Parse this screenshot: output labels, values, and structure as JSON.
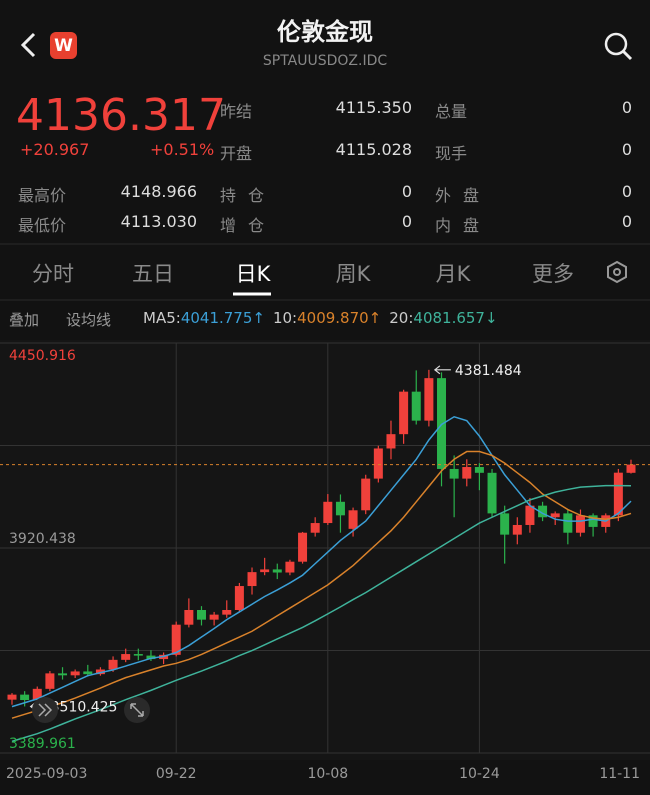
{
  "header": {
    "title": "伦敦金现",
    "code": "SPTAUUSDOZ.IDC"
  },
  "quote": {
    "price": "4136.317",
    "change": "+20.967",
    "change_pct": "+0.51%",
    "stats": [
      [
        "昨结",
        "4115.350"
      ],
      [
        "总量",
        "0"
      ],
      [
        "开盘",
        "4115.028"
      ],
      [
        "现手",
        "0"
      ],
      [
        "最高价",
        "4148.966"
      ],
      [
        "持仓",
        "0"
      ],
      [
        "外盘",
        "0"
      ],
      [
        "最低价",
        "4113.030"
      ],
      [
        "增仓",
        "0"
      ],
      [
        "内盘",
        "0"
      ]
    ]
  },
  "tabs": [
    "分时",
    "五日",
    "日K",
    "周K",
    "月K",
    "更多"
  ],
  "toolbar": [
    "叠加",
    "设均线"
  ],
  "chart_data": {
    "type": "candlestick",
    "categories": [
      "2025-09-03",
      null,
      null,
      null,
      null,
      null,
      null,
      null,
      null,
      null,
      null,
      null,
      null,
      "09-22",
      null,
      null,
      null,
      null,
      null,
      null,
      null,
      null,
      null,
      null,
      null,
      "10-08",
      null,
      null,
      null,
      null,
      null,
      null,
      null,
      null,
      null,
      null,
      null,
      "10-24",
      null,
      null,
      null,
      null,
      null,
      null,
      null,
      null,
      null,
      null,
      null,
      "11-11"
    ],
    "ohlc": [
      [
        3528,
        3545,
        3515,
        3541
      ],
      [
        3541,
        3550,
        3510.425,
        3527
      ],
      [
        3527,
        3562,
        3522,
        3556
      ],
      [
        3556,
        3602,
        3550,
        3596
      ],
      [
        3596,
        3612,
        3580,
        3591
      ],
      [
        3591,
        3606,
        3584,
        3601
      ],
      [
        3601,
        3618,
        3588,
        3594
      ],
      [
        3594,
        3612,
        3590,
        3606
      ],
      [
        3606,
        3640,
        3600,
        3631
      ],
      [
        3631,
        3660,
        3625,
        3646
      ],
      [
        3646,
        3660,
        3630,
        3642
      ],
      [
        3642,
        3656,
        3628,
        3633
      ],
      [
        3633,
        3650,
        3620,
        3644
      ],
      [
        3644,
        3730,
        3640,
        3722
      ],
      [
        3722,
        3790,
        3715,
        3760
      ],
      [
        3760,
        3770,
        3720,
        3735
      ],
      [
        3735,
        3755,
        3720,
        3748
      ],
      [
        3748,
        3785,
        3740,
        3760
      ],
      [
        3760,
        3830,
        3755,
        3822
      ],
      [
        3822,
        3870,
        3800,
        3858
      ],
      [
        3858,
        3895,
        3850,
        3865
      ],
      [
        3865,
        3880,
        3840,
        3857
      ],
      [
        3857,
        3890,
        3850,
        3885
      ],
      [
        3885,
        3962,
        3880,
        3960
      ],
      [
        3960,
        4000,
        3950,
        3985
      ],
      [
        3985,
        4060,
        3980,
        4040
      ],
      [
        4040,
        4059,
        3960,
        4005
      ],
      [
        3970,
        4025,
        3950,
        4018
      ],
      [
        4018,
        4110,
        4008,
        4100
      ],
      [
        4100,
        4185,
        4090,
        4178
      ],
      [
        4178,
        4250,
        4150,
        4215
      ],
      [
        4215,
        4330,
        4190,
        4325
      ],
      [
        4325,
        4380,
        4240,
        4250
      ],
      [
        4250,
        4381.484,
        4235,
        4360
      ],
      [
        4360,
        4375,
        4080,
        4125
      ],
      [
        4125,
        4160,
        4000,
        4100
      ],
      [
        4100,
        4150,
        4080,
        4130
      ],
      [
        4130,
        4140,
        4070,
        4115
      ],
      [
        4115,
        4125,
        4000,
        4010
      ],
      [
        4010,
        4030,
        3880,
        3955
      ],
      [
        3955,
        4000,
        3930,
        3980
      ],
      [
        3980,
        4050,
        3960,
        4030
      ],
      [
        4030,
        4040,
        3990,
        4000
      ],
      [
        4000,
        4015,
        3980,
        4010
      ],
      [
        4010,
        4020,
        3930,
        3960
      ],
      [
        3960,
        4020,
        3950,
        4005
      ],
      [
        4005,
        4010,
        3950,
        3975
      ],
      [
        3975,
        4010,
        3960,
        4005
      ],
      [
        4005,
        4125,
        3990,
        4115.35
      ],
      [
        4115.028,
        4148.966,
        4113.03,
        4136.317
      ]
    ],
    "up_color": "#f0413b",
    "down_color": "#2bb24c",
    "series": [
      {
        "name": "MA5",
        "color": "#3b9fd6",
        "value_label": "4041.775↑",
        "values": [
          3510,
          3520,
          3530,
          3545,
          3560,
          3575,
          3590,
          3598,
          3605,
          3615,
          3625,
          3635,
          3640,
          3650,
          3668,
          3690,
          3712,
          3735,
          3755,
          3775,
          3795,
          3812,
          3830,
          3850,
          3880,
          3910,
          3940,
          3965,
          3990,
          4030,
          4070,
          4110,
          4150,
          4200,
          4240,
          4260,
          4250,
          4210,
          4160,
          4110,
          4070,
          4030,
          4010,
          3995,
          3990,
          3990,
          3995,
          3990,
          4010,
          4041.775
        ]
      },
      {
        "name": "10",
        "color": "#d9822b",
        "value_label": "4009.870↑",
        "values": [
          3480,
          3490,
          3500,
          3510,
          3520,
          3532,
          3545,
          3558,
          3572,
          3585,
          3595,
          3605,
          3615,
          3622,
          3632,
          3645,
          3660,
          3675,
          3690,
          3705,
          3725,
          3745,
          3765,
          3785,
          3805,
          3825,
          3850,
          3875,
          3905,
          3935,
          3965,
          4000,
          4040,
          4080,
          4120,
          4150,
          4170,
          4170,
          4160,
          4140,
          4115,
          4090,
          4060,
          4040,
          4020,
          4005,
          3998,
          3995,
          4000,
          4009.87
        ]
      },
      {
        "name": "20",
        "color": "#3fb39b",
        "value_label": "4081.657↓",
        "values": [
          3420,
          3430,
          3440,
          3452,
          3465,
          3478,
          3490,
          3502,
          3515,
          3528,
          3540,
          3552,
          3565,
          3578,
          3590,
          3602,
          3615,
          3628,
          3642,
          3655,
          3670,
          3685,
          3700,
          3715,
          3732,
          3750,
          3768,
          3787,
          3805,
          3825,
          3845,
          3865,
          3885,
          3905,
          3925,
          3945,
          3965,
          3985,
          4000,
          4015,
          4030,
          4045,
          4055,
          4065,
          4072,
          4078,
          4080,
          4082,
          4082,
          4081.657
        ]
      }
    ],
    "ylim": [
      3389.961,
      4450.916
    ],
    "yticks": [
      4450.916,
      3920.438,
      3389.961
    ],
    "ygrid": [
      4450.916,
      4185.677,
      3920.438,
      3655.2,
      3389.961
    ],
    "grid": true,
    "current_line": 4136.317
  }
}
